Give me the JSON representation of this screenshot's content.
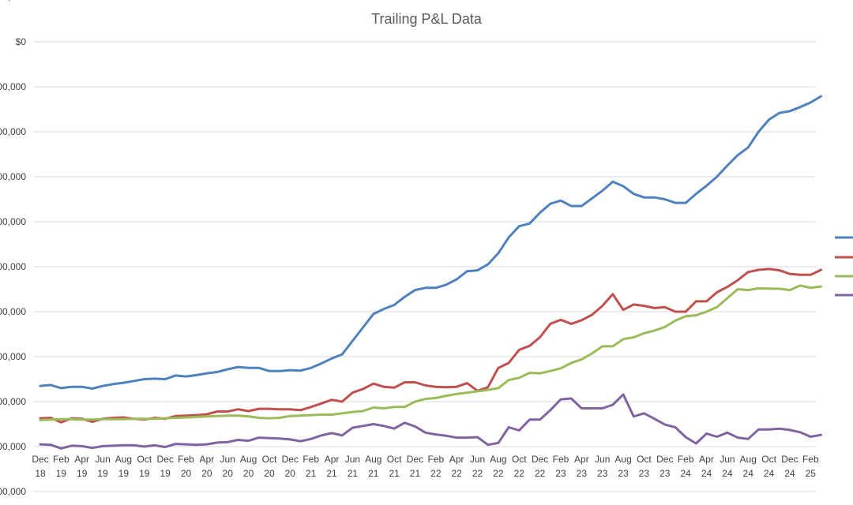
{
  "chart_data": {
    "type": "line",
    "title": "Trailing P&L Data",
    "xlabel": "",
    "ylabel": "",
    "grid": true,
    "legend_position": "right",
    "y_tick_labels": [
      ",000,000",
      "00,000",
      "00,000",
      "00,000",
      "00,000",
      "00,000",
      "00,000",
      "00,000",
      "00,000",
      "00,000",
      "$0",
      ",000,000"
    ],
    "y_tick_values": [
      -1000000,
      0,
      1000000,
      2000000,
      3000000,
      4000000,
      5000000,
      6000000,
      7000000,
      8000000,
      9000000,
      10000000
    ],
    "ylim": [
      -1000000,
      10000000
    ],
    "x_tick_labels": [
      [
        "Dec",
        "18"
      ],
      [
        "Feb",
        "19"
      ],
      [
        "Apr",
        "19"
      ],
      [
        "Jun",
        "19"
      ],
      [
        "Aug",
        "19"
      ],
      [
        "Oct",
        "19"
      ],
      [
        "Dec",
        "19"
      ],
      [
        "Feb",
        "20"
      ],
      [
        "Apr",
        "20"
      ],
      [
        "Jun",
        "20"
      ],
      [
        "Aug",
        "20"
      ],
      [
        "Oct",
        "20"
      ],
      [
        "Dec",
        "20"
      ],
      [
        "Feb",
        "21"
      ],
      [
        "Apr",
        "21"
      ],
      [
        "Jun",
        "21"
      ],
      [
        "Aug",
        "21"
      ],
      [
        "Oct",
        "21"
      ],
      [
        "Dec",
        "21"
      ],
      [
        "Feb",
        "22"
      ],
      [
        "Apr",
        "22"
      ],
      [
        "Jun",
        "22"
      ],
      [
        "Aug",
        "22"
      ],
      [
        "Oct",
        "22"
      ],
      [
        "Dec",
        "22"
      ],
      [
        "Feb",
        "23"
      ],
      [
        "Apr",
        "23"
      ],
      [
        "Jun",
        "23"
      ],
      [
        "Aug",
        "23"
      ],
      [
        "Oct",
        "23"
      ],
      [
        "Dec",
        "23"
      ],
      [
        "Feb",
        "24"
      ],
      [
        "Apr",
        "24"
      ],
      [
        "Jun",
        "24"
      ],
      [
        "Aug",
        "24"
      ],
      [
        "Oct",
        "24"
      ],
      [
        "Dec",
        "24"
      ],
      [
        "Feb",
        "25"
      ]
    ],
    "x": [
      "2018-12",
      "2019-01",
      "2019-02",
      "2019-03",
      "2019-04",
      "2019-05",
      "2019-06",
      "2019-07",
      "2019-08",
      "2019-09",
      "2019-10",
      "2019-11",
      "2019-12",
      "2020-01",
      "2020-02",
      "2020-03",
      "2020-04",
      "2020-05",
      "2020-06",
      "2020-07",
      "2020-08",
      "2020-09",
      "2020-10",
      "2020-11",
      "2020-12",
      "2021-01",
      "2021-02",
      "2021-03",
      "2021-04",
      "2021-05",
      "2021-06",
      "2021-07",
      "2021-08",
      "2021-09",
      "2021-10",
      "2021-11",
      "2021-12",
      "2022-01",
      "2022-02",
      "2022-03",
      "2022-04",
      "2022-05",
      "2022-06",
      "2022-07",
      "2022-08",
      "2022-09",
      "2022-10",
      "2022-11",
      "2022-12",
      "2023-01",
      "2023-02",
      "2023-03",
      "2023-04",
      "2023-05",
      "2023-06",
      "2023-07",
      "2023-08",
      "2023-09",
      "2023-10",
      "2023-11",
      "2023-12",
      "2024-01",
      "2024-02",
      "2024-03",
      "2024-04",
      "2024-05",
      "2024-06",
      "2024-07",
      "2024-08",
      "2024-09",
      "2024-10",
      "2024-11",
      "2024-12",
      "2025-01",
      "2025-02",
      "2025-03"
    ],
    "series": [
      {
        "color": "#4f81bd",
        "values": [
          1350000,
          1370000,
          1300000,
          1330000,
          1330000,
          1290000,
          1350000,
          1390000,
          1420000,
          1460000,
          1500000,
          1510000,
          1500000,
          1580000,
          1560000,
          1590000,
          1630000,
          1660000,
          1720000,
          1770000,
          1750000,
          1750000,
          1680000,
          1680000,
          1700000,
          1690000,
          1750000,
          1850000,
          1960000,
          2050000,
          2350000,
          2650000,
          2950000,
          3060000,
          3150000,
          3330000,
          3480000,
          3530000,
          3530000,
          3600000,
          3720000,
          3900000,
          3920000,
          4050000,
          4300000,
          4650000,
          4900000,
          4960000,
          5200000,
          5400000,
          5470000,
          5350000,
          5350000,
          5520000,
          5690000,
          5890000,
          5790000,
          5620000,
          5540000,
          5540000,
          5500000,
          5420000,
          5420000,
          5620000,
          5800000,
          6000000,
          6250000,
          6480000,
          6650000,
          7000000,
          7270000,
          7420000,
          7460000,
          7550000,
          7650000,
          7790000
        ]
      },
      {
        "color": "#c0504d",
        "values": [
          630000,
          640000,
          540000,
          630000,
          620000,
          550000,
          620000,
          640000,
          650000,
          620000,
          600000,
          640000,
          620000,
          680000,
          690000,
          700000,
          720000,
          780000,
          780000,
          830000,
          790000,
          840000,
          840000,
          830000,
          830000,
          810000,
          880000,
          960000,
          1040000,
          1000000,
          1200000,
          1280000,
          1400000,
          1330000,
          1310000,
          1430000,
          1430000,
          1360000,
          1330000,
          1320000,
          1330000,
          1410000,
          1240000,
          1320000,
          1750000,
          1860000,
          2150000,
          2240000,
          2430000,
          2730000,
          2820000,
          2730000,
          2810000,
          2930000,
          3130000,
          3390000,
          3040000,
          3160000,
          3130000,
          3080000,
          3100000,
          3000000,
          3000000,
          3230000,
          3230000,
          3430000,
          3550000,
          3700000,
          3880000,
          3930000,
          3950000,
          3920000,
          3840000,
          3820000,
          3820000,
          3930000
        ]
      },
      {
        "color": "#9bbb59",
        "values": [
          590000,
          600000,
          610000,
          610000,
          600000,
          600000,
          610000,
          610000,
          610000,
          620000,
          620000,
          620000,
          630000,
          640000,
          650000,
          660000,
          670000,
          680000,
          690000,
          690000,
          670000,
          640000,
          630000,
          640000,
          680000,
          690000,
          700000,
          710000,
          710000,
          740000,
          770000,
          790000,
          870000,
          850000,
          880000,
          880000,
          1000000,
          1060000,
          1080000,
          1130000,
          1170000,
          1200000,
          1230000,
          1260000,
          1300000,
          1480000,
          1530000,
          1640000,
          1630000,
          1680000,
          1740000,
          1860000,
          1940000,
          2070000,
          2230000,
          2230000,
          2390000,
          2430000,
          2520000,
          2580000,
          2660000,
          2800000,
          2900000,
          2920000,
          3000000,
          3100000,
          3300000,
          3500000,
          3480000,
          3520000,
          3510000,
          3510000,
          3480000,
          3580000,
          3530000,
          3560000
        ]
      },
      {
        "color": "#8064a2",
        "values": [
          50000,
          40000,
          -40000,
          20000,
          10000,
          -30000,
          10000,
          20000,
          30000,
          30000,
          0,
          30000,
          -10000,
          60000,
          50000,
          40000,
          50000,
          90000,
          100000,
          150000,
          130000,
          200000,
          190000,
          180000,
          160000,
          120000,
          170000,
          250000,
          300000,
          250000,
          420000,
          460000,
          500000,
          460000,
          400000,
          530000,
          450000,
          310000,
          270000,
          240000,
          200000,
          200000,
          210000,
          40000,
          80000,
          430000,
          360000,
          600000,
          600000,
          810000,
          1050000,
          1070000,
          850000,
          850000,
          850000,
          930000,
          1160000,
          670000,
          740000,
          620000,
          490000,
          430000,
          210000,
          70000,
          290000,
          220000,
          310000,
          200000,
          170000,
          380000,
          380000,
          400000,
          370000,
          320000,
          220000,
          260000
        ]
      }
    ]
  }
}
